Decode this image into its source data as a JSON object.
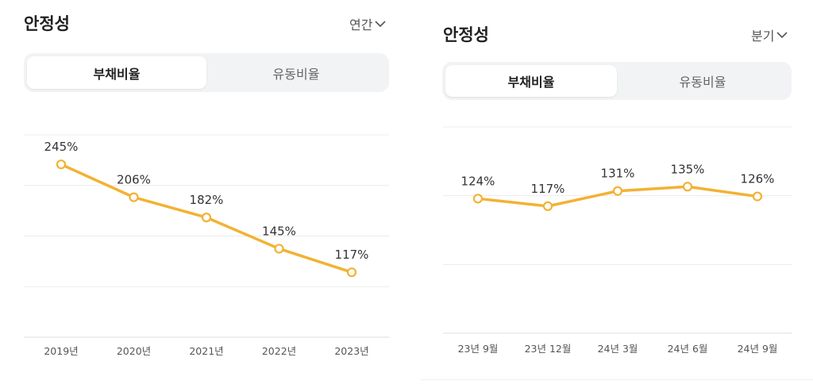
{
  "panels": [
    {
      "title": "안정성",
      "period": "연간",
      "tabs": [
        {
          "label": "부채비율",
          "active": true
        },
        {
          "label": "유동비율",
          "active": false
        }
      ]
    },
    {
      "title": "안정성",
      "period": "분기",
      "tabs": [
        {
          "label": "부채비율",
          "active": true
        },
        {
          "label": "유동비율",
          "active": false
        }
      ]
    }
  ],
  "colors": {
    "line": "#f2b233",
    "grid": "#ececec",
    "axis": "#dcdcdc"
  },
  "chart_data": [
    {
      "type": "line",
      "title": "",
      "xlabel": "",
      "ylabel": "",
      "categories": [
        "2019년",
        "2020년",
        "2021년",
        "2022년",
        "2023년"
      ],
      "values": [
        245,
        206,
        182,
        145,
        117
      ],
      "labels": [
        "245%",
        "206%",
        "182%",
        "145%",
        "117%"
      ],
      "ylim": [
        40,
        280
      ],
      "grid": true,
      "legend": "none"
    },
    {
      "type": "line",
      "title": "",
      "xlabel": "",
      "ylabel": "",
      "categories": [
        "23년 9월",
        "23년 12월",
        "24년 3월",
        "24년 6월",
        "24년 9월"
      ],
      "values": [
        124,
        117,
        131,
        135,
        126
      ],
      "labels": [
        "124%",
        "117%",
        "131%",
        "135%",
        "126%"
      ],
      "ylim": [
        0,
        190
      ],
      "grid": true,
      "legend": "none"
    }
  ]
}
